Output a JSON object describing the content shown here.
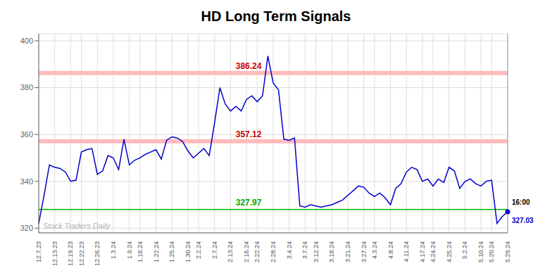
{
  "chart_data": {
    "type": "line",
    "title": "HD Long Term Signals",
    "categories": [
      "12.7.23",
      null,
      null,
      "12.13.23",
      null,
      null,
      "12.19.23",
      null,
      "12.22.23",
      null,
      null,
      "12.26.23",
      null,
      null,
      "1.3.24",
      null,
      null,
      "1.9.24",
      null,
      "1.16.24",
      null,
      null,
      "1.22.24",
      null,
      null,
      "1.25.24",
      null,
      null,
      "1.30.24",
      null,
      "2.2.24",
      null,
      null,
      "2.7.24",
      null,
      null,
      "2.13.24",
      null,
      null,
      "2.16.24",
      null,
      "2.22.24",
      null,
      null,
      "2.28.24",
      null,
      null,
      "3.4.24",
      null,
      null,
      "3.7.24",
      null,
      "3.12.24",
      null,
      null,
      "3.18.24",
      null,
      null,
      "3.21.24",
      null,
      null,
      "3.27.24",
      null,
      "4.3.24",
      null,
      null,
      "4.8.24",
      null,
      null,
      "4.11.24",
      null,
      null,
      "4.17.24",
      null,
      "4.24.24",
      null,
      null,
      "4.25.24",
      null,
      null,
      "5.2.24",
      null,
      null,
      "5.10.24",
      null,
      "5.20.24",
      null,
      null,
      "5.29.24"
    ],
    "values": [
      322.0,
      334.0,
      347.0,
      346.0,
      345.5,
      344.0,
      340.0,
      340.5,
      352.5,
      353.5,
      354.0,
      343.0,
      344.5,
      351.0,
      350.0,
      345.0,
      358.0,
      347.0,
      349.0,
      350.0,
      351.5,
      352.5,
      353.5,
      349.5,
      357.5,
      359.0,
      358.5,
      357.0,
      353.0,
      350.0,
      352.0,
      354.0,
      351.0,
      365.0,
      380.0,
      373.0,
      370.0,
      372.0,
      370.0,
      375.0,
      376.5,
      374.0,
      376.5,
      393.5,
      382.0,
      379.0,
      358.0,
      357.5,
      358.5,
      329.5,
      329.0,
      330.0,
      329.5,
      329.0,
      329.5,
      330.0,
      331.0,
      332.0,
      334.0,
      336.0,
      338.0,
      337.5,
      335.0,
      333.5,
      335.0,
      333.0,
      330.0,
      337.0,
      339.0,
      344.0,
      346.0,
      345.0,
      340.0,
      341.0,
      338.0,
      341.0,
      339.5,
      346.0,
      344.5,
      337.0,
      340.0,
      341.0,
      339.0,
      338.0,
      340.0,
      340.5,
      322.0,
      325.0,
      327.03
    ],
    "color": "#0000cc",
    "ylim": [
      318,
      403
    ],
    "yticks": [
      320,
      340,
      360,
      380,
      400
    ],
    "grid": true,
    "reference_lines": [
      {
        "value": 386.24,
        "label": "386.24",
        "color": "#ffbbbb",
        "label_color": "#cc0000"
      },
      {
        "value": 357.12,
        "label": "357.12",
        "color": "#ffbbbb",
        "label_color": "#cc0000"
      },
      {
        "value": 327.97,
        "label": "327.97",
        "color": "#00bb00",
        "label_color": "#00aa00"
      }
    ],
    "last_point": {
      "label": "16:00",
      "label_color": "#000000",
      "value_label": "327.03",
      "color": "#0000cc"
    },
    "watermark": {
      "text": "Stock Traders Daily",
      "color": "#b0b0b0"
    }
  }
}
